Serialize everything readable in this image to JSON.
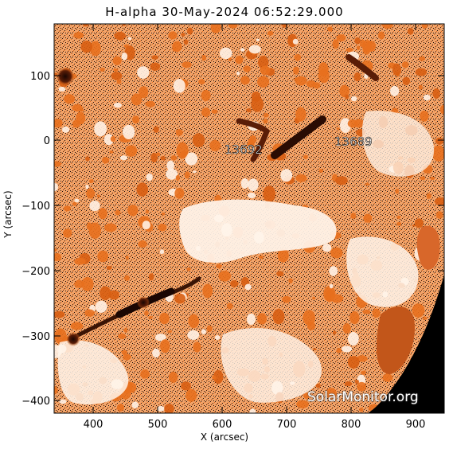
{
  "title": "H-alpha 30-May-2024 06:52:29.000",
  "x_axis": {
    "label": "X (arcsec)",
    "ticks": [
      "400",
      "500",
      "600",
      "700",
      "800",
      "900"
    ]
  },
  "y_axis": {
    "label": "Y (arcsec)",
    "ticks": [
      "100",
      "0",
      "−100",
      "−200",
      "−300",
      "−400"
    ]
  },
  "regions": [
    {
      "id": "13692",
      "label": "13692"
    },
    {
      "id": "13689",
      "label": "13689"
    }
  ],
  "watermark": "SolarMonitor.org",
  "colors": {
    "chromosphere": "#e8701e",
    "dark": "#3a1405",
    "bright": "#fff4ea",
    "space": "#000000"
  }
}
